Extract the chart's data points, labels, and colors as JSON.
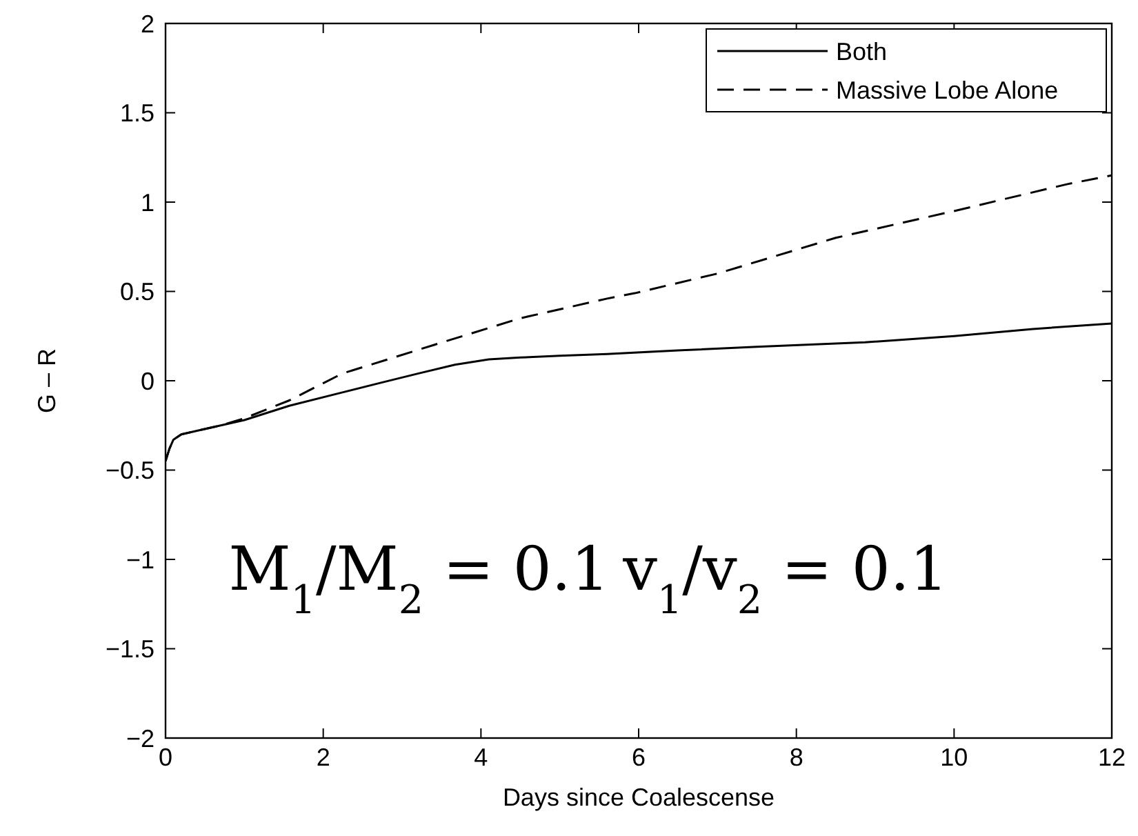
{
  "chart_data": {
    "type": "line",
    "xlabel": "Days since Coalescense",
    "ylabel": "G – R",
    "xlim": [
      0,
      12
    ],
    "ylim": [
      -2,
      2
    ],
    "xticks": [
      0,
      2,
      4,
      6,
      8,
      10,
      12
    ],
    "yticks": [
      {
        "value": -2,
        "label": "−2"
      },
      {
        "value": -1.5,
        "label": "−1.5"
      },
      {
        "value": -1,
        "label": "−1"
      },
      {
        "value": -0.5,
        "label": "−0.5"
      },
      0,
      0.5,
      1,
      1.5,
      2
    ],
    "legend": "top right",
    "grid": false,
    "series": [
      {
        "name": "Both",
        "color": "#000000",
        "line_style": "solid",
        "x": [
          0,
          0.05,
          0.1,
          0.2,
          0.4,
          0.7,
          1.0,
          1.57,
          2.2,
          2.74,
          3.2,
          3.67,
          4.1,
          4.5,
          5.0,
          5.6,
          6.5,
          7.5,
          8.87,
          10,
          11,
          12
        ],
        "values": [
          -0.45,
          -0.38,
          -0.33,
          -0.3,
          -0.28,
          -0.25,
          -0.22,
          -0.14,
          -0.07,
          -0.01,
          0.04,
          0.09,
          0.12,
          0.13,
          0.14,
          0.15,
          0.17,
          0.19,
          0.215,
          0.25,
          0.29,
          0.32
        ]
      },
      {
        "name": "Massive Lobe Alone",
        "color": "#000000",
        "line_style": "dashed",
        "x": [
          0,
          0.05,
          0.1,
          0.2,
          0.4,
          0.7,
          1.0,
          1.57,
          2.24,
          3.4,
          4.5,
          5.6,
          5.95,
          7,
          8.5,
          10,
          11.43,
          12
        ],
        "values": [
          -0.45,
          -0.38,
          -0.33,
          -0.3,
          -0.28,
          -0.25,
          -0.21,
          -0.11,
          0.04,
          0.2,
          0.35,
          0.46,
          0.49,
          0.6,
          0.8,
          0.95,
          1.1,
          1.15
        ]
      }
    ],
    "annotations": [
      "M$_{1}$/M$_{2}$ = 0.1",
      "v$_{1}$/v$_{2}$ = 0.1"
    ]
  }
}
